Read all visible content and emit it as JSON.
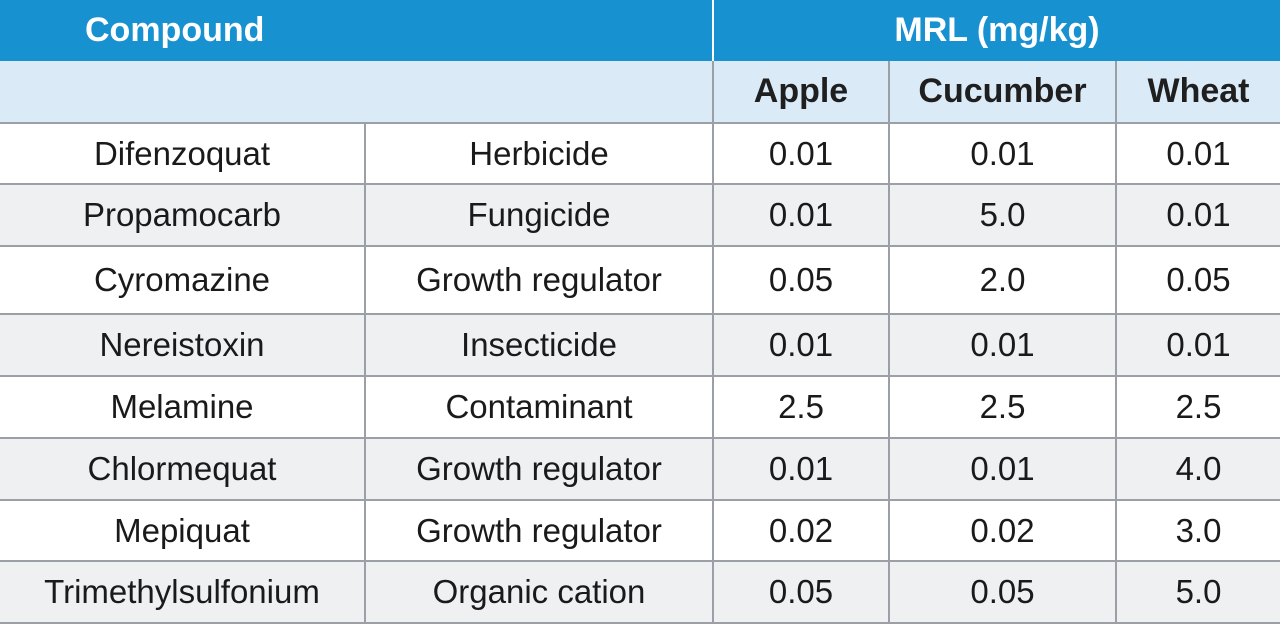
{
  "header": {
    "compound_label": "Compound",
    "mrl_label": "MRL (mg/kg)",
    "crops": [
      "Apple",
      "Cucumber",
      "Wheat"
    ]
  },
  "colors": {
    "header_band": "#1891d1",
    "subheader_band": "#dbeaf7",
    "alt_row": "#eff0f2",
    "grid_line": "#9aa0a6"
  },
  "rows": [
    {
      "compound": "Difenzoquat",
      "type": "Herbicide",
      "apple": "0.01",
      "cucumber": "0.01",
      "wheat": "0.01"
    },
    {
      "compound": "Propamocarb",
      "type": "Fungicide",
      "apple": "0.01",
      "cucumber": "5.0",
      "wheat": "0.01"
    },
    {
      "compound": "Cyromazine",
      "type": "Growth regulator",
      "apple": "0.05",
      "cucumber": "2.0",
      "wheat": "0.05"
    },
    {
      "compound": "Nereistoxin",
      "type": "Insecticide",
      "apple": "0.01",
      "cucumber": "0.01",
      "wheat": "0.01"
    },
    {
      "compound": "Melamine",
      "type": "Contaminant",
      "apple": "2.5",
      "cucumber": "2.5",
      "wheat": "2.5"
    },
    {
      "compound": "Chlormequat",
      "type": "Growth regulator",
      "apple": "0.01",
      "cucumber": "0.01",
      "wheat": "4.0"
    },
    {
      "compound": "Mepiquat",
      "type": "Growth regulator",
      "apple": "0.02",
      "cucumber": "0.02",
      "wheat": "3.0"
    },
    {
      "compound": "Trimethylsulfonium",
      "type": "Organic cation",
      "apple": "0.05",
      "cucumber": "0.05",
      "wheat": "5.0"
    }
  ]
}
